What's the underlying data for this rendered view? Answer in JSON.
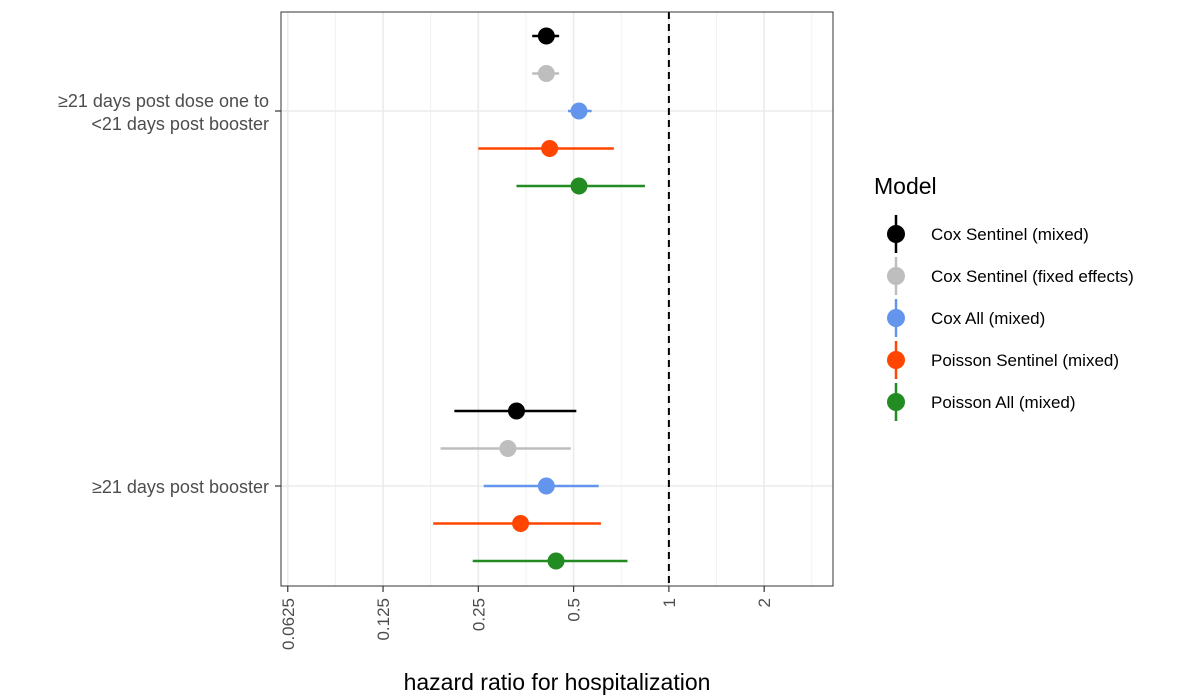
{
  "chart_data": {
    "type": "forest",
    "xlabel": "hazard ratio for hospitalization",
    "x_scale": "log2",
    "xlim": [
      0.0595,
      3.3
    ],
    "x_ticks": [
      {
        "value": 0.0625,
        "label": "0.0625"
      },
      {
        "value": 0.125,
        "label": "0.125"
      },
      {
        "value": 0.25,
        "label": "0.25"
      },
      {
        "value": 0.5,
        "label": "0.5"
      },
      {
        "value": 1,
        "label": "1"
      },
      {
        "value": 2,
        "label": "2"
      }
    ],
    "reference_line": 1,
    "grid": true,
    "legend_title": "Model",
    "legend_position": "right",
    "categories": [
      {
        "line1": "≥21 days post dose one to",
        "line2": "<21 days post booster"
      },
      {
        "line1": "≥21 days post booster",
        "line2": ""
      }
    ],
    "series": [
      {
        "name": "Cox Sentinel (mixed)",
        "color": "#000000",
        "points": [
          {
            "est": 0.41,
            "lo": 0.37,
            "hi": 0.45
          },
          {
            "est": 0.33,
            "lo": 0.21,
            "hi": 0.51
          }
        ]
      },
      {
        "name": "Cox Sentinel (fixed effects)",
        "color": "#bebebe",
        "points": [
          {
            "est": 0.41,
            "lo": 0.37,
            "hi": 0.45
          },
          {
            "est": 0.31,
            "lo": 0.19,
            "hi": 0.49
          }
        ]
      },
      {
        "name": "Cox All (mixed)",
        "color": "#6495ed",
        "points": [
          {
            "est": 0.52,
            "lo": 0.48,
            "hi": 0.57
          },
          {
            "est": 0.41,
            "lo": 0.26,
            "hi": 0.6
          }
        ]
      },
      {
        "name": "Poisson Sentinel (mixed)",
        "color": "#ff4500",
        "points": [
          {
            "est": 0.42,
            "lo": 0.25,
            "hi": 0.67
          },
          {
            "est": 0.34,
            "lo": 0.18,
            "hi": 0.61
          }
        ]
      },
      {
        "name": "Poisson All (mixed)",
        "color": "#228b22",
        "points": [
          {
            "est": 0.52,
            "lo": 0.33,
            "hi": 0.84
          },
          {
            "est": 0.44,
            "lo": 0.24,
            "hi": 0.74
          }
        ]
      }
    ]
  }
}
